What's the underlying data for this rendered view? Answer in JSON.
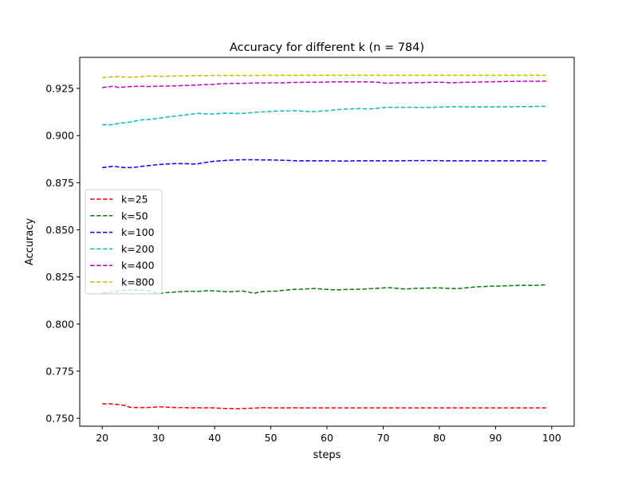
{
  "chart_data": {
    "type": "line",
    "title": "Accuracy for different k (n = 784)",
    "xlabel": "steps",
    "ylabel": "Accuracy",
    "xlim": [
      16,
      104
    ],
    "ylim": [
      0.7458,
      0.9415
    ],
    "xticks": [
      20,
      30,
      40,
      50,
      60,
      70,
      80,
      90,
      100
    ],
    "yticks": [
      0.75,
      0.775,
      0.8,
      0.825,
      0.85,
      0.875,
      0.9,
      0.925
    ],
    "ytick_labels": [
      "0.750",
      "0.775",
      "0.800",
      "0.825",
      "0.850",
      "0.875",
      "0.900",
      "0.925"
    ],
    "grid": false,
    "legend_position": "center-left",
    "x": [
      20,
      21,
      22,
      23,
      24,
      25,
      26,
      27,
      28,
      29,
      30,
      31,
      32,
      33,
      34,
      35,
      36,
      37,
      38,
      39,
      40,
      41,
      42,
      43,
      44,
      45,
      46,
      47,
      48,
      49,
      50,
      51,
      52,
      53,
      54,
      55,
      56,
      57,
      58,
      59,
      60,
      61,
      62,
      63,
      64,
      65,
      66,
      67,
      68,
      69,
      70,
      71,
      72,
      73,
      74,
      75,
      76,
      77,
      78,
      79,
      80,
      81,
      82,
      83,
      84,
      85,
      86,
      87,
      88,
      89,
      90,
      91,
      92,
      93,
      94,
      95,
      96,
      97,
      98,
      99
    ],
    "series": [
      {
        "name": "k=25",
        "color": "#ff0000",
        "values": [
          0.7577,
          0.7577,
          0.7575,
          0.7572,
          0.7568,
          0.7558,
          0.7557,
          0.7557,
          0.7557,
          0.7558,
          0.7561,
          0.756,
          0.7558,
          0.7557,
          0.7557,
          0.7556,
          0.7555,
          0.7556,
          0.7555,
          0.7556,
          0.7555,
          0.7553,
          0.7552,
          0.7552,
          0.7551,
          0.7552,
          0.7553,
          0.7554,
          0.7556,
          0.7556,
          0.7555,
          0.7555,
          0.7555,
          0.7555,
          0.7556,
          0.7555,
          0.7555,
          0.7555,
          0.7555,
          0.7555,
          0.7555,
          0.7555,
          0.7555,
          0.7555,
          0.7555,
          0.7555,
          0.7555,
          0.7555,
          0.7555,
          0.7555,
          0.7555,
          0.7555,
          0.7555,
          0.7555,
          0.7555,
          0.7555,
          0.7555,
          0.7555,
          0.7555,
          0.7555,
          0.7555,
          0.7555,
          0.7555,
          0.7555,
          0.7555,
          0.7555,
          0.7555,
          0.7555,
          0.7555,
          0.7555,
          0.7555,
          0.7555,
          0.7555,
          0.7555,
          0.7555,
          0.7555,
          0.7555,
          0.7555,
          0.7555,
          0.7555
        ]
      },
      {
        "name": "k=50",
        "color": "#008000",
        "values": [
          0.8165,
          0.8168,
          0.8172,
          0.8176,
          0.818,
          0.818,
          0.8181,
          0.818,
          0.8178,
          0.8172,
          0.8162,
          0.8165,
          0.8168,
          0.817,
          0.8172,
          0.8174,
          0.8174,
          0.8173,
          0.8176,
          0.8177,
          0.8176,
          0.8174,
          0.8172,
          0.8172,
          0.8174,
          0.8175,
          0.817,
          0.8163,
          0.817,
          0.8174,
          0.8174,
          0.8175,
          0.8178,
          0.8181,
          0.8184,
          0.8184,
          0.8186,
          0.8188,
          0.8188,
          0.8186,
          0.8184,
          0.8182,
          0.8182,
          0.8183,
          0.8184,
          0.8184,
          0.8185,
          0.8186,
          0.8188,
          0.819,
          0.8192,
          0.8193,
          0.8191,
          0.8188,
          0.8186,
          0.8188,
          0.819,
          0.819,
          0.8191,
          0.8192,
          0.8192,
          0.819,
          0.8189,
          0.8188,
          0.819,
          0.8193,
          0.8196,
          0.8198,
          0.8199,
          0.8201,
          0.8201,
          0.8202,
          0.8203,
          0.8204,
          0.8205,
          0.8205,
          0.8205,
          0.8205,
          0.8207,
          0.8208
        ]
      },
      {
        "name": "k=100",
        "color": "#0000ff",
        "values": [
          0.883,
          0.8833,
          0.8838,
          0.8833,
          0.883,
          0.883,
          0.8832,
          0.8837,
          0.884,
          0.8843,
          0.8846,
          0.8848,
          0.885,
          0.8851,
          0.8851,
          0.8851,
          0.8849,
          0.885,
          0.8856,
          0.886,
          0.8864,
          0.8866,
          0.8868,
          0.887,
          0.8871,
          0.8872,
          0.8872,
          0.8872,
          0.8871,
          0.8871,
          0.8871,
          0.887,
          0.8869,
          0.8868,
          0.8867,
          0.8866,
          0.8866,
          0.8866,
          0.8866,
          0.8866,
          0.8866,
          0.8866,
          0.8865,
          0.8865,
          0.8865,
          0.8866,
          0.8866,
          0.8866,
          0.8866,
          0.8866,
          0.8866,
          0.8866,
          0.8866,
          0.8866,
          0.8867,
          0.8867,
          0.8867,
          0.8867,
          0.8867,
          0.8867,
          0.8867,
          0.8866,
          0.8866,
          0.8866,
          0.8866,
          0.8866,
          0.8866,
          0.8866,
          0.8866,
          0.8866,
          0.8866,
          0.8866,
          0.8866,
          0.8866,
          0.8866,
          0.8866,
          0.8866,
          0.8866,
          0.8866,
          0.8866
        ]
      },
      {
        "name": "k=200",
        "color": "#00bfbf",
        "values": [
          0.9058,
          0.9058,
          0.9058,
          0.9066,
          0.9068,
          0.9072,
          0.9078,
          0.9083,
          0.9085,
          0.9088,
          0.9092,
          0.9096,
          0.91,
          0.9103,
          0.9107,
          0.911,
          0.9114,
          0.9118,
          0.9116,
          0.9114,
          0.9115,
          0.9117,
          0.9119,
          0.9118,
          0.9117,
          0.9118,
          0.912,
          0.9123,
          0.9125,
          0.9126,
          0.9128,
          0.913,
          0.9131,
          0.9131,
          0.9132,
          0.9131,
          0.9129,
          0.9127,
          0.9128,
          0.913,
          0.9132,
          0.9135,
          0.9138,
          0.914,
          0.9142,
          0.9143,
          0.9143,
          0.9142,
          0.9142,
          0.9145,
          0.9148,
          0.915,
          0.915,
          0.915,
          0.915,
          0.915,
          0.9149,
          0.9149,
          0.9149,
          0.915,
          0.9151,
          0.9152,
          0.9153,
          0.9153,
          0.9153,
          0.9152,
          0.9152,
          0.9152,
          0.9152,
          0.9152,
          0.9152,
          0.9153,
          0.9153,
          0.9153,
          0.9154,
          0.9154,
          0.9154,
          0.9155,
          0.9155,
          0.9155
        ]
      },
      {
        "name": "k=400",
        "color": "#bf00bf",
        "values": [
          0.9255,
          0.9258,
          0.9262,
          0.9255,
          0.9258,
          0.926,
          0.9261,
          0.9262,
          0.926,
          0.9261,
          0.9262,
          0.9263,
          0.9263,
          0.9264,
          0.9265,
          0.9266,
          0.9267,
          0.9268,
          0.927,
          0.9271,
          0.9272,
          0.9275,
          0.9276,
          0.9277,
          0.9277,
          0.9277,
          0.9278,
          0.9279,
          0.9279,
          0.9279,
          0.928,
          0.928,
          0.928,
          0.9281,
          0.9282,
          0.9282,
          0.9283,
          0.9283,
          0.9283,
          0.9283,
          0.9284,
          0.9285,
          0.9285,
          0.9285,
          0.9285,
          0.9285,
          0.9285,
          0.9285,
          0.9284,
          0.9283,
          0.9279,
          0.9278,
          0.9279,
          0.928,
          0.928,
          0.928,
          0.9281,
          0.9281,
          0.9282,
          0.9283,
          0.9283,
          0.9282,
          0.928,
          0.9281,
          0.9282,
          0.9283,
          0.9283,
          0.9284,
          0.9285,
          0.9285,
          0.9286,
          0.9286,
          0.9287,
          0.9287,
          0.9288,
          0.9288,
          0.9288,
          0.9288,
          0.9288,
          0.9289
        ]
      },
      {
        "name": "k=800",
        "color": "#bfbf00",
        "values": [
          0.9308,
          0.931,
          0.9312,
          0.9313,
          0.9311,
          0.931,
          0.9311,
          0.9313,
          0.9315,
          0.9316,
          0.9314,
          0.9314,
          0.9315,
          0.9316,
          0.9317,
          0.9317,
          0.9318,
          0.9318,
          0.9318,
          0.9318,
          0.9319,
          0.9319,
          0.9319,
          0.9319,
          0.9319,
          0.9319,
          0.9319,
          0.9319,
          0.9319,
          0.932,
          0.932,
          0.932,
          0.932,
          0.932,
          0.932,
          0.932,
          0.932,
          0.932,
          0.932,
          0.932,
          0.932,
          0.932,
          0.932,
          0.932,
          0.932,
          0.932,
          0.932,
          0.932,
          0.932,
          0.932,
          0.932,
          0.932,
          0.932,
          0.932,
          0.932,
          0.932,
          0.932,
          0.932,
          0.932,
          0.932,
          0.932,
          0.932,
          0.932,
          0.932,
          0.932,
          0.932,
          0.932,
          0.932,
          0.932,
          0.932,
          0.932,
          0.932,
          0.932,
          0.932,
          0.932,
          0.932,
          0.932,
          0.932,
          0.932,
          0.932
        ]
      }
    ]
  }
}
